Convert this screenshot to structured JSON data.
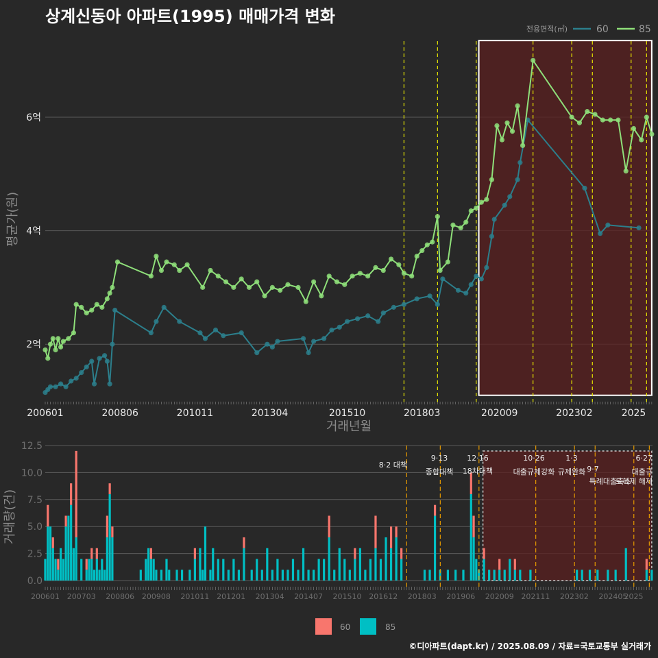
{
  "title": "상계신동아 아파트(1995) 매매가격 변화",
  "footer": "©디아파트(dapt.kr) / 2025.08.09 / 자료=국토교통부 실거래가",
  "colors": {
    "background": "#282828",
    "series_60_line": "#2c7f8c",
    "series_85_line": "#8fe07a",
    "bar_60": "#f8766d",
    "bar_85": "#00bfc4",
    "policy_line": "#e6e600",
    "highlight_border": "#ffffff",
    "highlight_fill": "#5a1f1f"
  },
  "chart_data": [
    {
      "type": "line",
      "title": "",
      "xlabel": "거래년월",
      "ylabel": "평균가(원)",
      "x_range": [
        "200601",
        "202508"
      ],
      "x_ticks": [
        "200601",
        "200806",
        "201011",
        "201304",
        "201510",
        "201803",
        "202009",
        "202302",
        "2025"
      ],
      "ylim": [
        1.0,
        7.4
      ],
      "y_ticks": [
        2,
        4,
        6
      ],
      "y_tick_labels": [
        "2억",
        "4억",
        "6억"
      ],
      "legend": {
        "title": "전용면적(㎡)",
        "position": "top-right",
        "entries": [
          "60",
          "85"
        ]
      },
      "policy_dates": [
        "2017-08",
        "2018-09",
        "2019-12",
        "2021-10",
        "2023-01",
        "2023-09",
        "2024-12",
        "2025-06"
      ],
      "highlight": {
        "from": "2020-01",
        "to": "2025-08",
        "ymin": 1.1,
        "ymax": 7.35
      },
      "series": [
        {
          "name": "60",
          "points": [
            [
              "2006-01",
              1.15
            ],
            [
              "2006-02",
              1.2
            ],
            [
              "2006-03",
              1.25
            ],
            [
              "2006-05",
              1.25
            ],
            [
              "2006-07",
              1.3
            ],
            [
              "2006-09",
              1.25
            ],
            [
              "2006-11",
              1.35
            ],
            [
              "2007-01",
              1.4
            ],
            [
              "2007-03",
              1.5
            ],
            [
              "2007-05",
              1.6
            ],
            [
              "2007-07",
              1.7
            ],
            [
              "2007-08",
              1.3
            ],
            [
              "2007-10",
              1.75
            ],
            [
              "2007-12",
              1.8
            ],
            [
              "2008-01",
              1.7
            ],
            [
              "2008-02",
              1.3
            ],
            [
              "2008-03",
              2.0
            ],
            [
              "2008-04",
              2.6
            ],
            [
              "2009-06",
              2.2
            ],
            [
              "2009-08",
              2.4
            ],
            [
              "2009-11",
              2.65
            ],
            [
              "2010-05",
              2.4
            ],
            [
              "2011-01",
              2.2
            ],
            [
              "2011-03",
              2.1
            ],
            [
              "2011-07",
              2.25
            ],
            [
              "2011-10",
              2.15
            ],
            [
              "2012-05",
              2.2
            ],
            [
              "2012-11",
              1.85
            ],
            [
              "2013-03",
              2.0
            ],
            [
              "2013-05",
              1.95
            ],
            [
              "2013-07",
              2.05
            ],
            [
              "2014-05",
              2.1
            ],
            [
              "2014-07",
              1.85
            ],
            [
              "2014-09",
              2.05
            ],
            [
              "2015-01",
              2.1
            ],
            [
              "2015-04",
              2.25
            ],
            [
              "2015-07",
              2.3
            ],
            [
              "2015-10",
              2.4
            ],
            [
              "2016-02",
              2.45
            ],
            [
              "2016-06",
              2.5
            ],
            [
              "2016-10",
              2.4
            ],
            [
              "2016-12",
              2.55
            ],
            [
              "2017-04",
              2.65
            ],
            [
              "2017-08",
              2.7
            ],
            [
              "2018-01",
              2.8
            ],
            [
              "2018-06",
              2.85
            ],
            [
              "2018-09",
              2.7
            ],
            [
              "2018-11",
              3.15
            ],
            [
              "2019-05",
              2.95
            ],
            [
              "2019-08",
              2.9
            ],
            [
              "2019-10",
              3.05
            ],
            [
              "2019-12",
              3.2
            ],
            [
              "2020-02",
              3.15
            ],
            [
              "2020-04",
              3.35
            ],
            [
              "2020-06",
              3.9
            ],
            [
              "2020-07",
              4.2
            ],
            [
              "2020-11",
              4.45
            ],
            [
              "2021-01",
              4.6
            ],
            [
              "2021-04",
              4.9
            ],
            [
              "2021-05",
              5.2
            ],
            [
              "2021-08",
              5.95
            ],
            [
              "2023-06",
              4.75
            ],
            [
              "2023-12",
              3.95
            ],
            [
              "2024-03",
              4.1
            ],
            [
              "2025-03",
              4.05
            ]
          ]
        },
        {
          "name": "85",
          "points": [
            [
              "2006-01",
              1.9
            ],
            [
              "2006-02",
              1.75
            ],
            [
              "2006-03",
              2.0
            ],
            [
              "2006-04",
              2.1
            ],
            [
              "2006-05",
              1.9
            ],
            [
              "2006-06",
              2.1
            ],
            [
              "2006-07",
              1.95
            ],
            [
              "2006-08",
              2.05
            ],
            [
              "2006-10",
              2.1
            ],
            [
              "2006-12",
              2.2
            ],
            [
              "2007-01",
              2.7
            ],
            [
              "2007-03",
              2.65
            ],
            [
              "2007-05",
              2.55
            ],
            [
              "2007-07",
              2.6
            ],
            [
              "2007-09",
              2.7
            ],
            [
              "2007-11",
              2.65
            ],
            [
              "2008-01",
              2.8
            ],
            [
              "2008-02",
              2.9
            ],
            [
              "2008-03",
              3.0
            ],
            [
              "2008-05",
              3.45
            ],
            [
              "2009-06",
              3.2
            ],
            [
              "2009-08",
              3.55
            ],
            [
              "2009-10",
              3.3
            ],
            [
              "2009-12",
              3.45
            ],
            [
              "2010-03",
              3.4
            ],
            [
              "2010-05",
              3.3
            ],
            [
              "2010-08",
              3.4
            ],
            [
              "2011-02",
              3.0
            ],
            [
              "2011-05",
              3.3
            ],
            [
              "2011-08",
              3.2
            ],
            [
              "2011-11",
              3.1
            ],
            [
              "2012-02",
              3.0
            ],
            [
              "2012-05",
              3.15
            ],
            [
              "2012-08",
              3.0
            ],
            [
              "2012-11",
              3.1
            ],
            [
              "2013-02",
              2.85
            ],
            [
              "2013-05",
              3.0
            ],
            [
              "2013-08",
              2.95
            ],
            [
              "2013-11",
              3.05
            ],
            [
              "2014-03",
              3.0
            ],
            [
              "2014-06",
              2.75
            ],
            [
              "2014-09",
              3.1
            ],
            [
              "2014-12",
              2.85
            ],
            [
              "2015-03",
              3.2
            ],
            [
              "2015-06",
              3.1
            ],
            [
              "2015-09",
              3.05
            ],
            [
              "2015-12",
              3.2
            ],
            [
              "2016-03",
              3.25
            ],
            [
              "2016-06",
              3.2
            ],
            [
              "2016-09",
              3.35
            ],
            [
              "2016-12",
              3.3
            ],
            [
              "2017-03",
              3.5
            ],
            [
              "2017-06",
              3.4
            ],
            [
              "2017-08",
              3.25
            ],
            [
              "2017-11",
              3.2
            ],
            [
              "2018-01",
              3.55
            ],
            [
              "2018-03",
              3.65
            ],
            [
              "2018-05",
              3.75
            ],
            [
              "2018-07",
              3.8
            ],
            [
              "2018-09",
              4.25
            ],
            [
              "2018-10",
              3.3
            ],
            [
              "2019-01",
              3.45
            ],
            [
              "2019-03",
              4.1
            ],
            [
              "2019-06",
              4.05
            ],
            [
              "2019-08",
              4.15
            ],
            [
              "2019-10",
              4.35
            ],
            [
              "2019-12",
              4.4
            ],
            [
              "2020-02",
              4.5
            ],
            [
              "2020-04",
              4.55
            ],
            [
              "2020-06",
              4.9
            ],
            [
              "2020-08",
              5.85
            ],
            [
              "2020-10",
              5.6
            ],
            [
              "2020-12",
              5.9
            ],
            [
              "2021-02",
              5.75
            ],
            [
              "2021-04",
              6.2
            ],
            [
              "2021-06",
              5.5
            ],
            [
              "2021-10",
              7.0
            ],
            [
              "2023-01",
              6.0
            ],
            [
              "2023-04",
              5.9
            ],
            [
              "2023-07",
              6.1
            ],
            [
              "2023-10",
              6.05
            ],
            [
              "2024-01",
              5.95
            ],
            [
              "2024-04",
              5.95
            ],
            [
              "2024-07",
              5.95
            ],
            [
              "2024-10",
              5.05
            ],
            [
              "2025-01",
              5.8
            ],
            [
              "2025-04",
              5.6
            ],
            [
              "2025-06",
              6.0
            ],
            [
              "2025-08",
              5.7
            ]
          ]
        }
      ]
    },
    {
      "type": "bar",
      "stacked": true,
      "xlabel": "",
      "ylabel": "거래량(건)",
      "x_ticks": [
        "200601",
        "200703",
        "200806",
        "200908",
        "201011",
        "201201",
        "201304",
        "201407",
        "201510",
        "201612",
        "201803",
        "201906",
        "202009",
        "202111",
        "202302",
        "202405",
        "2025"
      ],
      "ylim": [
        0,
        12.5
      ],
      "y_ticks": [
        0.0,
        2.5,
        5.0,
        7.5,
        10.0,
        12.5
      ],
      "y_tick_labels": [
        "0.0",
        "2.5",
        "5.0",
        "7.5",
        "10.0",
        "12.5"
      ],
      "legend": {
        "position": "bottom",
        "entries": [
          "60",
          "85"
        ]
      },
      "highlight": {
        "from": "2020-01",
        "to": "2025-08"
      },
      "annotations": [
        {
          "date": "2017-08",
          "line1": "8·2 대책",
          "line2": ""
        },
        {
          "date": "2018-09",
          "line1": "9·13",
          "line2": "종합대책"
        },
        {
          "date": "2019-12",
          "line1": "12·16",
          "line2": "18차대책"
        },
        {
          "date": "2021-10",
          "line1": "10·26",
          "line2": "대출규제강화"
        },
        {
          "date": "2023-01",
          "line1": "1·3",
          "line2": "규제완화"
        },
        {
          "date": "2023-09",
          "line1": "",
          "line2": "9·7"
        },
        {
          "date": "2023-09",
          "line1": "",
          "line2": "특례대출축소"
        },
        {
          "date": "2024-12",
          "line1": "",
          "line2": "토허제 해제"
        },
        {
          "date": "2025-06",
          "line1": "6·27",
          "line2": "대출규"
        }
      ],
      "series": [
        {
          "name": "85",
          "values_by_month": {
            "2006-01": 2,
            "2006-02": 5,
            "2006-03": 5,
            "2006-04": 3,
            "2006-05": 2,
            "2006-06": 1,
            "2006-07": 3,
            "2006-08": 2,
            "2006-09": 5,
            "2006-10": 6,
            "2006-11": 7,
            "2006-12": 3,
            "2007-01": 4,
            "2007-03": 2,
            "2007-05": 1,
            "2007-06": 2,
            "2007-07": 2,
            "2007-08": 1,
            "2007-09": 2,
            "2007-10": 1,
            "2007-11": 2,
            "2007-12": 1,
            "2008-01": 4,
            "2008-02": 8,
            "2008-03": 4,
            "2009-02": 1,
            "2009-04": 2,
            "2009-05": 3,
            "2009-06": 2,
            "2009-07": 2,
            "2009-08": 1,
            "2009-10": 1,
            "2009-12": 2,
            "2010-01": 1,
            "2010-04": 1,
            "2010-06": 1,
            "2010-09": 1,
            "2010-11": 2,
            "2011-01": 3,
            "2011-02": 1,
            "2011-03": 5,
            "2011-05": 1,
            "2011-06": 3,
            "2011-08": 2,
            "2011-10": 2,
            "2011-12": 1,
            "2012-02": 2,
            "2012-04": 1,
            "2012-06": 3,
            "2012-09": 1,
            "2012-11": 2,
            "2013-01": 1,
            "2013-03": 3,
            "2013-05": 1,
            "2013-07": 2,
            "2013-09": 1,
            "2013-11": 1,
            "2014-01": 2,
            "2014-03": 1,
            "2014-05": 3,
            "2014-07": 1,
            "2014-09": 1,
            "2014-11": 2,
            "2015-01": 2,
            "2015-03": 4,
            "2015-05": 1,
            "2015-07": 3,
            "2015-09": 2,
            "2015-11": 1,
            "2016-01": 2,
            "2016-03": 3,
            "2016-05": 1,
            "2016-07": 2,
            "2016-09": 3,
            "2016-11": 2,
            "2017-01": 4,
            "2017-03": 3,
            "2017-05": 4,
            "2017-07": 2,
            "2018-04": 1,
            "2018-06": 1,
            "2018-08": 6,
            "2018-10": 1,
            "2019-01": 1,
            "2019-04": 1,
            "2019-07": 1,
            "2019-10": 8,
            "2019-11": 4,
            "2019-12": 2,
            "2020-01": 1,
            "2020-03": 2,
            "2020-05": 1,
            "2020-07": 1,
            "2020-09": 1,
            "2020-11": 1,
            "2021-01": 2,
            "2021-03": 1,
            "2021-05": 1,
            "2021-09": 1,
            "2023-03": 1,
            "2023-05": 1,
            "2023-08": 1,
            "2023-11": 1,
            "2024-03": 1,
            "2024-06": 1,
            "2024-10": 3,
            "2025-06": 1,
            "2025-08": 1
          }
        },
        {
          "name": "60",
          "values_by_month": {
            "2006-02": 2,
            "2006-04": 1,
            "2006-06": 1,
            "2006-09": 1,
            "2006-11": 2,
            "2007-01": 8,
            "2007-05": 1,
            "2007-07": 1,
            "2007-09": 1,
            "2008-01": 2,
            "2008-02": 1,
            "2008-03": 1,
            "2009-06": 1,
            "2010-11": 1,
            "2012-06": 1,
            "2015-03": 2,
            "2016-01": 1,
            "2016-09": 3,
            "2017-03": 2,
            "2017-05": 1,
            "2017-07": 1,
            "2018-08": 1,
            "2019-10": 2,
            "2019-11": 2,
            "2020-03": 1,
            "2020-09": 1,
            "2021-03": 1,
            "2025-06": 1
          }
        }
      ]
    }
  ]
}
